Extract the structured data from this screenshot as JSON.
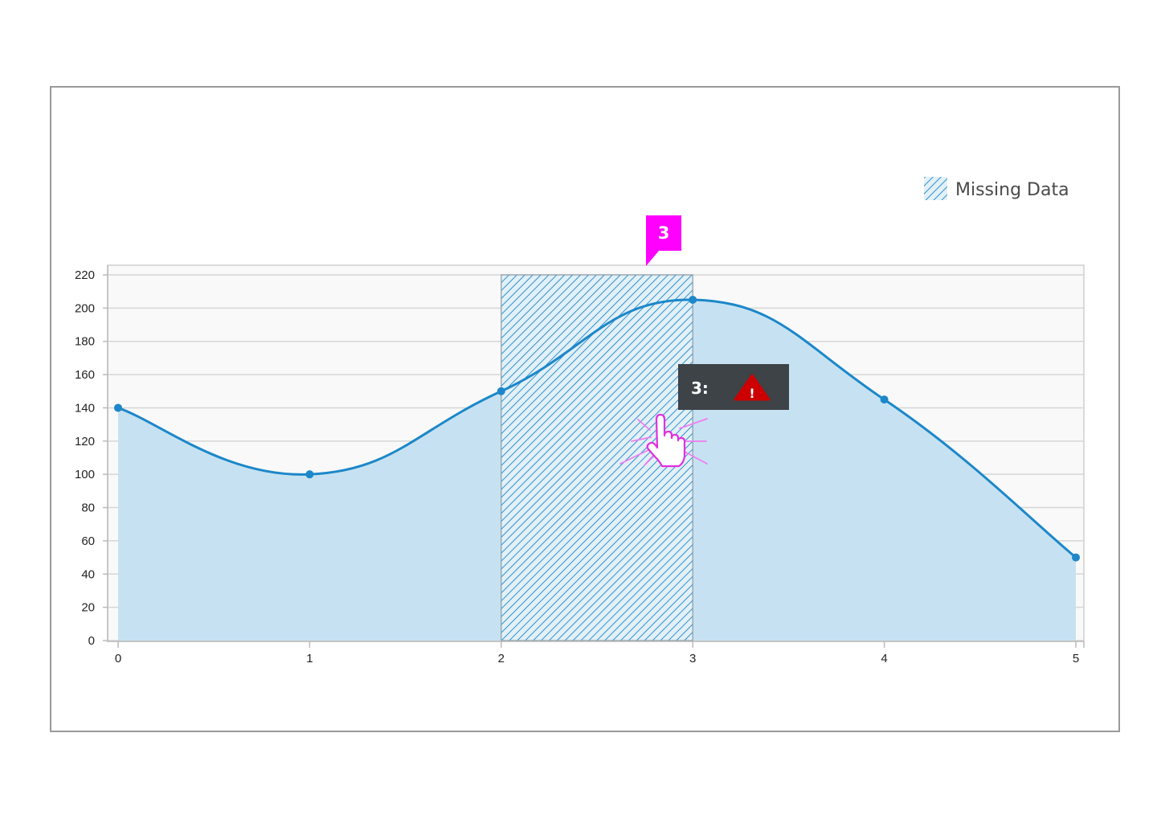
{
  "chart_data": {
    "type": "area",
    "title": "",
    "xlabel": "",
    "ylabel": "",
    "x": [
      0,
      1,
      2,
      3,
      4,
      5
    ],
    "series": [
      {
        "values": [
          140,
          100,
          150,
          205,
          145,
          50
        ]
      }
    ],
    "missing_range": [
      2,
      3
    ],
    "xlim": [
      0,
      5
    ],
    "ylim": [
      0,
      220
    ],
    "x_ticks": [
      "0",
      "1",
      "2",
      "3",
      "4",
      "5"
    ],
    "y_ticks": [
      "0",
      "20",
      "40",
      "60",
      "80",
      "100",
      "120",
      "140",
      "160",
      "180",
      "200",
      "220"
    ],
    "grid": true,
    "legend": {
      "position": "top-right",
      "label": "Missing Data"
    },
    "colors": {
      "line": "#1c87c9",
      "fill": "#c6e2f2",
      "hatch": "#1c87c9",
      "plot_bg": "#f9f9f9",
      "grid": "#d6d6d6"
    }
  },
  "tooltip": {
    "label": "3:",
    "icon": "warning-icon",
    "bg": "#3d4347",
    "icon_color": "#cc0000"
  },
  "callout": {
    "label": "3",
    "color": "#ff00ff"
  },
  "cursor": {
    "icon": "hand-pointer-icon",
    "color": "#ff00ff"
  }
}
